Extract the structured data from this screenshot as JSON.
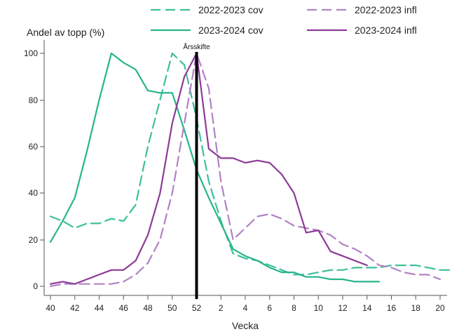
{
  "chart_data": {
    "type": "line",
    "title": "",
    "ylabel": "Andel av topp (%)",
    "xlabel": "Vecka",
    "x_ticks": [
      "40",
      "42",
      "44",
      "46",
      "48",
      "50",
      "52",
      "2",
      "4",
      "6",
      "8",
      "10",
      "12",
      "14",
      "16",
      "18",
      "20"
    ],
    "ylim": [
      0,
      100
    ],
    "y_ticks": [
      "0",
      "20",
      "40",
      "60",
      "80",
      "100"
    ],
    "grid": false,
    "legend_position": "top",
    "annotation": {
      "label": "Årsskifte",
      "at_week": "52"
    },
    "series": [
      {
        "name": "2022-2023 cov",
        "color": "#3dbf9a",
        "dash": "dashed",
        "points": [
          [
            40,
            30
          ],
          [
            41,
            28
          ],
          [
            42,
            25
          ],
          [
            43,
            27
          ],
          [
            44,
            27
          ],
          [
            45,
            29
          ],
          [
            46,
            28
          ],
          [
            47,
            35
          ],
          [
            48,
            60
          ],
          [
            49,
            80
          ],
          [
            50,
            100
          ],
          [
            51,
            95
          ],
          [
            52,
            72
          ],
          [
            53,
            45
          ],
          [
            54,
            28
          ],
          [
            55,
            14
          ],
          [
            56,
            12
          ],
          [
            57,
            11
          ],
          [
            58,
            9
          ],
          [
            59,
            7
          ],
          [
            60,
            5
          ],
          [
            61,
            5
          ],
          [
            62,
            6
          ],
          [
            63,
            7
          ],
          [
            64,
            7
          ],
          [
            65,
            8
          ],
          [
            66,
            8
          ],
          [
            67,
            8
          ],
          [
            68,
            9
          ],
          [
            69,
            9
          ],
          [
            70,
            9
          ],
          [
            71,
            8
          ],
          [
            72,
            7
          ],
          [
            73,
            7
          ],
          [
            74,
            6
          ]
        ]
      },
      {
        "name": "2023-2024 cov",
        "color": "#28b48c",
        "dash": "solid",
        "points": [
          [
            40,
            19
          ],
          [
            41,
            28
          ],
          [
            42,
            38
          ],
          [
            43,
            58
          ],
          [
            44,
            80
          ],
          [
            45,
            100
          ],
          [
            46,
            96
          ],
          [
            47,
            93
          ],
          [
            48,
            84
          ],
          [
            49,
            83
          ],
          [
            50,
            83
          ],
          [
            51,
            67
          ],
          [
            52,
            50
          ],
          [
            53,
            38
          ],
          [
            54,
            27
          ],
          [
            55,
            16
          ],
          [
            56,
            13
          ],
          [
            57,
            11
          ],
          [
            58,
            8
          ],
          [
            59,
            6
          ],
          [
            60,
            6
          ],
          [
            61,
            4
          ],
          [
            62,
            4
          ],
          [
            63,
            3
          ],
          [
            64,
            3
          ],
          [
            65,
            2
          ],
          [
            66,
            2
          ],
          [
            67,
            2
          ]
        ]
      },
      {
        "name": "2022-2023 infl",
        "color": "#b083c4",
        "dash": "dashed",
        "points": [
          [
            40,
            0
          ],
          [
            41,
            1
          ],
          [
            42,
            1
          ],
          [
            43,
            1
          ],
          [
            44,
            1
          ],
          [
            45,
            1
          ],
          [
            46,
            2
          ],
          [
            47,
            5
          ],
          [
            48,
            10
          ],
          [
            49,
            20
          ],
          [
            50,
            40
          ],
          [
            51,
            70
          ],
          [
            52,
            100
          ],
          [
            53,
            85
          ],
          [
            54,
            45
          ],
          [
            55,
            20
          ],
          [
            56,
            25
          ],
          [
            57,
            30
          ],
          [
            58,
            31
          ],
          [
            59,
            29
          ],
          [
            60,
            26
          ],
          [
            61,
            25
          ],
          [
            62,
            24
          ],
          [
            63,
            22
          ],
          [
            64,
            18
          ],
          [
            65,
            16
          ],
          [
            66,
            13
          ],
          [
            67,
            9
          ],
          [
            68,
            8
          ],
          [
            69,
            6
          ],
          [
            70,
            5
          ],
          [
            71,
            5
          ],
          [
            72,
            3
          ]
        ]
      },
      {
        "name": "2023-2024 infl",
        "color": "#8d3a97",
        "dash": "solid",
        "points": [
          [
            40,
            1
          ],
          [
            41,
            2
          ],
          [
            42,
            1
          ],
          [
            43,
            3
          ],
          [
            44,
            5
          ],
          [
            45,
            7
          ],
          [
            46,
            7
          ],
          [
            47,
            11
          ],
          [
            48,
            22
          ],
          [
            49,
            40
          ],
          [
            50,
            70
          ],
          [
            51,
            90
          ],
          [
            52,
            100
          ],
          [
            53,
            59
          ],
          [
            54,
            55
          ],
          [
            55,
            55
          ],
          [
            56,
            53
          ],
          [
            57,
            54
          ],
          [
            58,
            53
          ],
          [
            59,
            48
          ],
          [
            60,
            40
          ],
          [
            61,
            23
          ],
          [
            62,
            24
          ],
          [
            63,
            15
          ],
          [
            64,
            13
          ],
          [
            65,
            11
          ],
          [
            66,
            9
          ]
        ]
      }
    ]
  }
}
